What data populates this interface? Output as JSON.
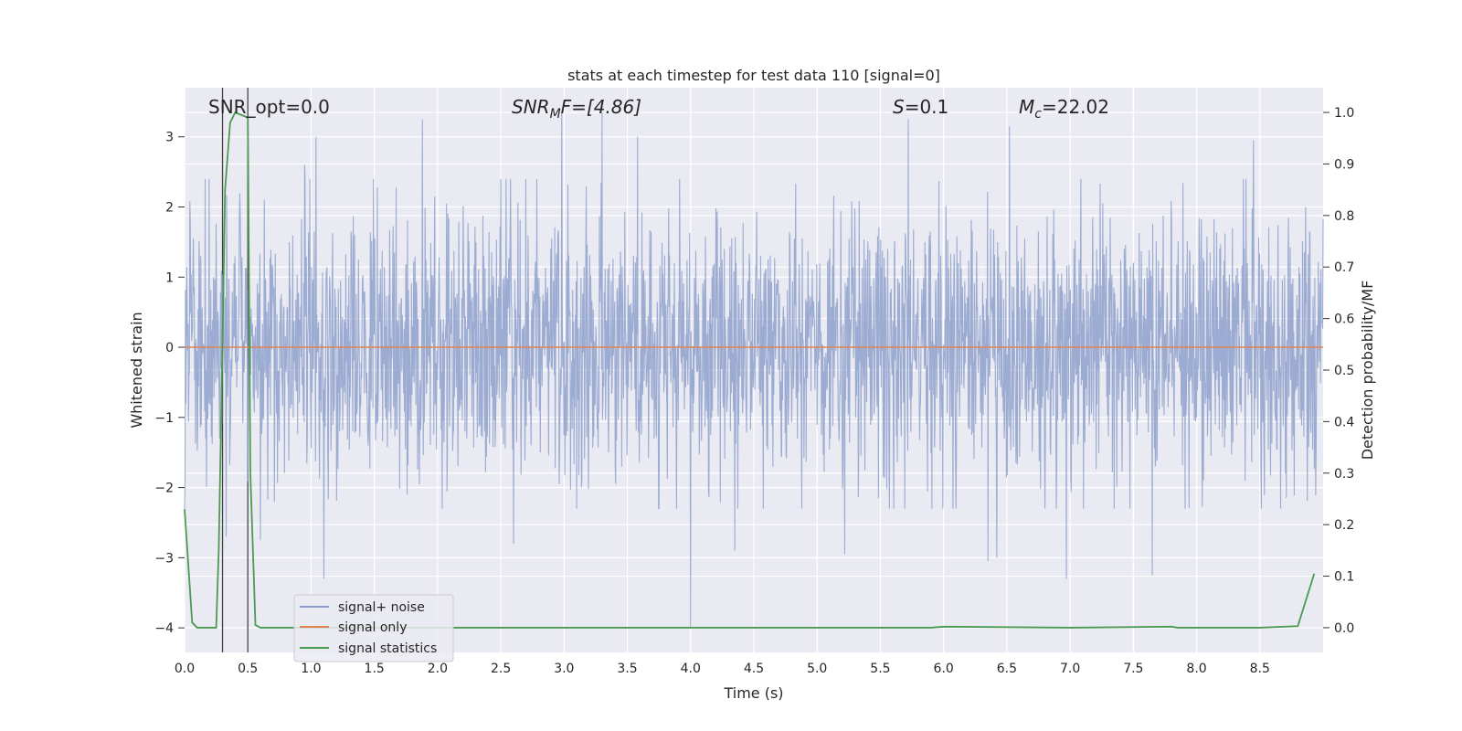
{
  "chart_data": {
    "type": "line",
    "title": "stats at each timestep for test data 110 [signal=0]",
    "xlabel": "Time (s)",
    "ylabel": "Whitened strain",
    "y2label": "Detection probability/MF",
    "xlim": [
      0,
      9.0
    ],
    "ylim": [
      -4.35,
      3.7
    ],
    "y2lim": [
      -0.048,
      1.048
    ],
    "x_ticks": [
      "0.0",
      "0.5",
      "1.0",
      "1.5",
      "2.0",
      "2.5",
      "3.0",
      "3.5",
      "4.0",
      "4.5",
      "5.0",
      "5.5",
      "6.0",
      "6.5",
      "7.0",
      "7.5",
      "8.0",
      "8.5"
    ],
    "y_ticks": [
      "−4",
      "−3",
      "−2",
      "−1",
      "0",
      "1",
      "2",
      "3"
    ],
    "y2_ticks": [
      "0.0",
      "0.1",
      "0.2",
      "0.3",
      "0.4",
      "0.5",
      "0.6",
      "0.7",
      "0.8",
      "0.9",
      "1.0"
    ],
    "grid": true,
    "legend_position": "lower-left",
    "annotations": {
      "snr_opt": "SNR_opt=0.0",
      "snr_mf_base": "SNR",
      "snr_mf_sub": "M",
      "snr_mf_rest": "F=[4.86]",
      "s_var": "S",
      "s_rest": "=0.1",
      "mc_var": "M",
      "mc_sub": "c",
      "mc_rest": "=22.02"
    },
    "vlines_x": [
      0.3,
      0.5
    ],
    "series": [
      {
        "name": "signal+ noise",
        "color": "#8da0cb",
        "axis": "left",
        "description_range": [
          -2.2,
          2.3
        ],
        "peaks": [
          {
            "x": 0.95,
            "y": 2.6
          },
          {
            "x": 1.04,
            "y": 3.0
          },
          {
            "x": 1.88,
            "y": 3.25
          },
          {
            "x": 2.98,
            "y": 3.35
          },
          {
            "x": 3.3,
            "y": 3.35
          },
          {
            "x": 3.58,
            "y": 3.0
          },
          {
            "x": 5.72,
            "y": 3.25
          },
          {
            "x": 6.52,
            "y": 3.15
          },
          {
            "x": 8.45,
            "y": 2.95
          },
          {
            "x": 1.1,
            "y": -3.3
          },
          {
            "x": 2.6,
            "y": -2.8
          },
          {
            "x": 4.0,
            "y": -4.0
          },
          {
            "x": 4.35,
            "y": -2.9
          },
          {
            "x": 5.22,
            "y": -2.95
          },
          {
            "x": 6.35,
            "y": -3.05
          },
          {
            "x": 6.42,
            "y": -3.0
          },
          {
            "x": 6.97,
            "y": -3.3
          },
          {
            "x": 7.65,
            "y": -3.25
          },
          {
            "x": 0.33,
            "y": -2.7
          },
          {
            "x": 0.6,
            "y": -2.75
          }
        ]
      },
      {
        "name": "signal only",
        "color": "#dd8452",
        "axis": "left",
        "x": [
          0,
          9.0
        ],
        "y": [
          0,
          0
        ]
      },
      {
        "name": "signal statistics",
        "color": "#4c9a52",
        "axis": "right",
        "x": [
          0,
          0.06,
          0.1,
          0.25,
          0.27,
          0.3,
          0.32,
          0.36,
          0.4,
          0.45,
          0.5,
          0.52,
          0.56,
          0.6,
          0.7,
          1.0,
          2.0,
          3.0,
          4.0,
          4.9,
          5.0,
          5.9,
          6.0,
          7.0,
          7.8,
          7.85,
          8.5,
          8.8,
          8.93
        ],
        "y": [
          0.23,
          0.01,
          0.0,
          0.0,
          0.15,
          0.55,
          0.85,
          0.98,
          1.0,
          0.995,
          0.99,
          0.3,
          0.005,
          0.0,
          0.0,
          0.0,
          0.0,
          0.0,
          0.0,
          0.0,
          0.0,
          0.0,
          0.002,
          0.0,
          0.002,
          0.0,
          0.0,
          0.003,
          0.105
        ]
      }
    ]
  }
}
